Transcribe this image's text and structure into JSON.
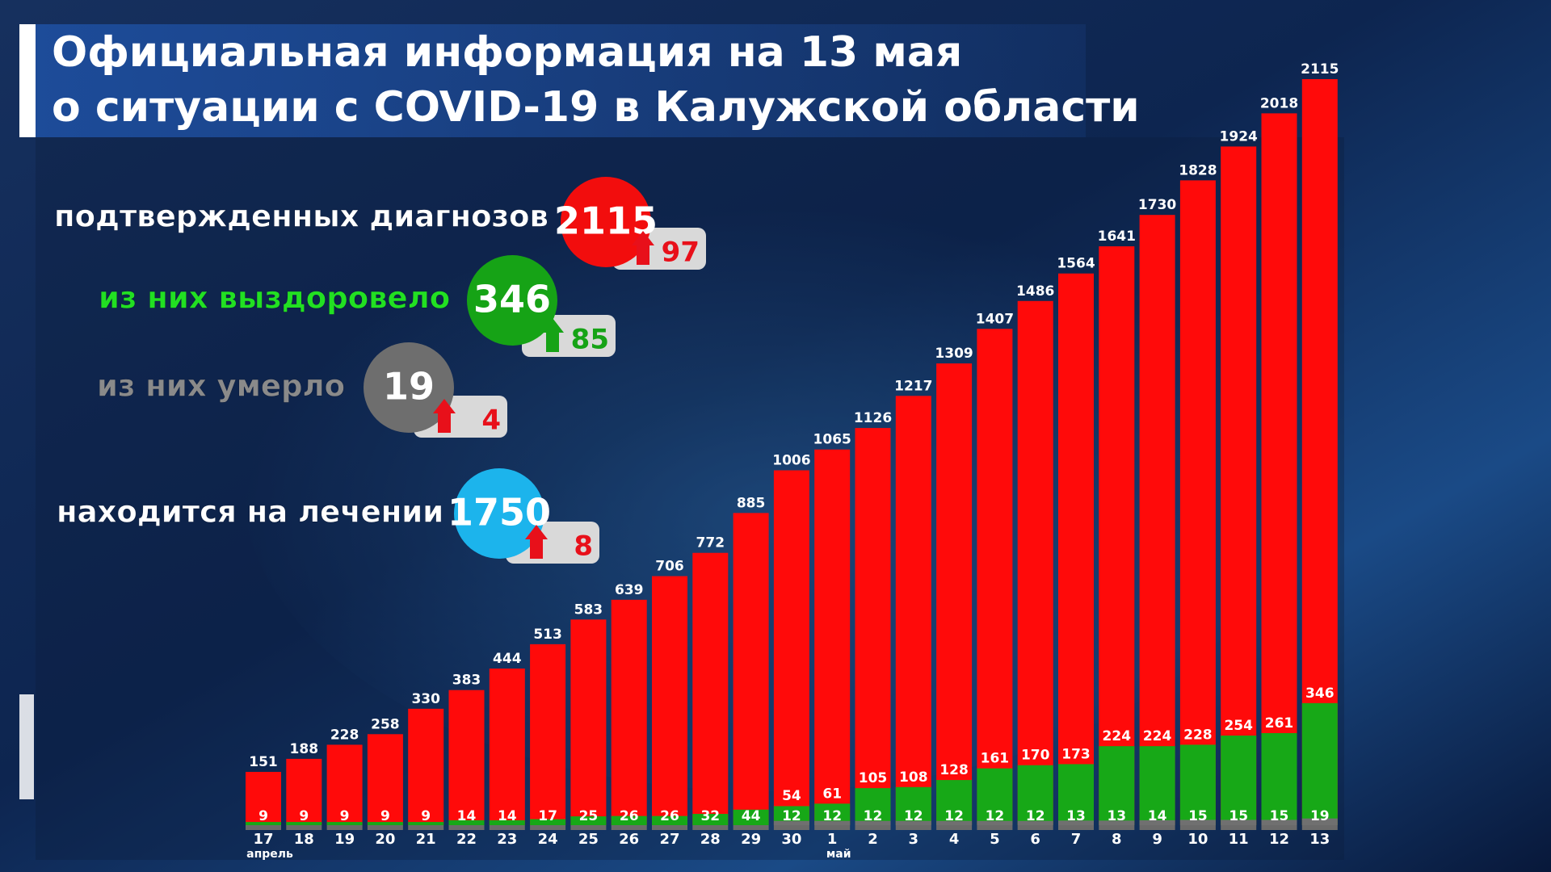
{
  "title_lines": [
    "Официальная информация на 13 мая",
    "о ситуации с COVID-19 в Калужской области"
  ],
  "summary": [
    {
      "label": "подтвержденных диагнозов",
      "value": 2115,
      "change": 97,
      "color": "#f20d0d",
      "label_color": "#ffffff",
      "change_color": "#e8101a"
    },
    {
      "label": "из них выздоровело",
      "value": 346,
      "change": 85,
      "color": "#16a316",
      "label_color": "#22e022",
      "change_color": "#16a316"
    },
    {
      "label": "из них умерло",
      "value": 19,
      "change": 4,
      "color": "#6e6e6e",
      "label_color": "#8a8a8a",
      "change_color": "#e8101a"
    },
    {
      "label": "находится на лечении",
      "value": 1750,
      "change": 8,
      "color": "#1cb4ec",
      "label_color": "#ffffff",
      "change_color": "#e8101a"
    }
  ],
  "chart_data": {
    "type": "bar",
    "categories": [
      "17",
      "18",
      "19",
      "20",
      "21",
      "22",
      "23",
      "24",
      "25",
      "26",
      "27",
      "28",
      "29",
      "30",
      "1",
      "2",
      "3",
      "4",
      "5",
      "6",
      "7",
      "8",
      "9",
      "10",
      "11",
      "12",
      "13"
    ],
    "month_labels": [
      "апрель",
      null,
      null,
      null,
      null,
      null,
      null,
      null,
      null,
      null,
      null,
      null,
      null,
      null,
      "май",
      null,
      null,
      null,
      null,
      null,
      null,
      null,
      null,
      null,
      null,
      null,
      null
    ],
    "series": [
      {
        "color": "#ff0a0a",
        "values": [
          151,
          188,
          228,
          258,
          330,
          383,
          444,
          513,
          583,
          639,
          706,
          772,
          885,
          1006,
          1065,
          1126,
          1217,
          1309,
          1407,
          1486,
          1564,
          1641,
          1730,
          1828,
          1924,
          2018,
          2115
        ]
      },
      {
        "color": "#17a817",
        "values": [
          9,
          9,
          9,
          9,
          9,
          14,
          14,
          17,
          25,
          26,
          26,
          32,
          44,
          54,
          61,
          105,
          108,
          128,
          161,
          170,
          173,
          224,
          224,
          228,
          254,
          261,
          346
        ]
      },
      {
        "color": "#707070",
        "values": [
          null,
          null,
          null,
          null,
          null,
          null,
          null,
          null,
          null,
          null,
          null,
          null,
          null,
          12,
          12,
          12,
          12,
          12,
          12,
          12,
          13,
          13,
          14,
          15,
          15,
          15,
          19
        ]
      }
    ]
  }
}
